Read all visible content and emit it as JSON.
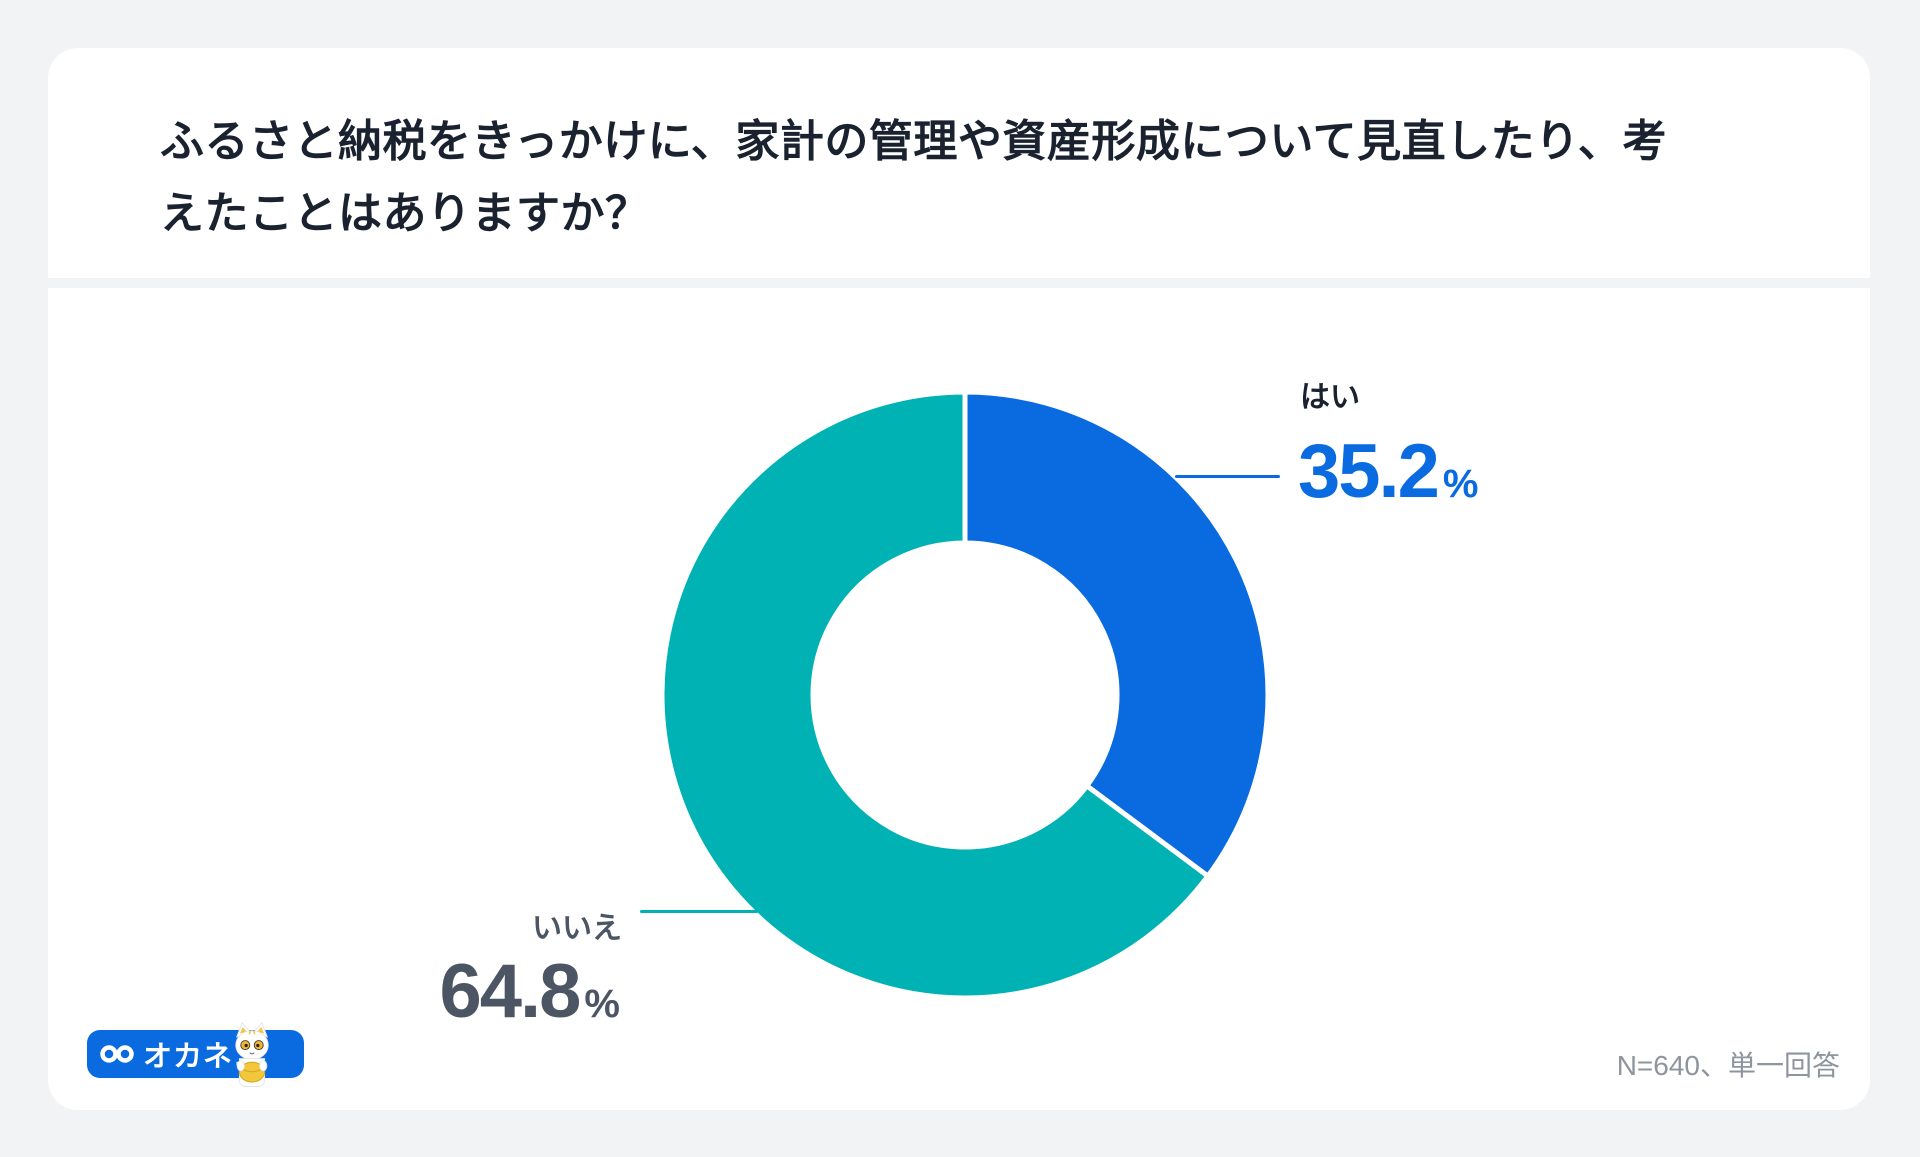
{
  "card": {
    "title_lines": [
      "ふるさと納税をきっかけに、家計の管理や資産形成について見直したり、考",
      "えたことはありますか？"
    ],
    "footnote": "N=640、単一回答"
  },
  "logo": {
    "brand": "オカネコ",
    "badge_color": "#0A6BE0",
    "icons": [
      "infinity-glasses-icon",
      "cat-mascot-icon"
    ]
  },
  "chart_data": {
    "type": "pie",
    "variant": "donut",
    "title": "ふるさと納税をきっかけに、家計の管理や資産形成について見直したり、考えたことはありますか？",
    "categories": [
      "はい",
      "いいえ"
    ],
    "values": [
      35.2,
      64.8
    ],
    "unit": "%",
    "sample_note": "N=640、単一回答",
    "colors": [
      "#0A6BE0",
      "#00B2B4"
    ],
    "value_colors": [
      "#0A6BE0",
      "#4B5563"
    ],
    "label_colors": [
      "#1A2230",
      "#4B5563"
    ],
    "start_angle_deg": 0,
    "direction": "clockwise",
    "inner_radius_ratio": 0.5,
    "slice_gap_stroke": "#FFFFFF",
    "legend_position": "callout-labels",
    "callouts": [
      {
        "label": "はい",
        "value": "35.2",
        "unit": "%"
      },
      {
        "label": "いいえ",
        "value": "64.8",
        "unit": "%"
      }
    ]
  }
}
